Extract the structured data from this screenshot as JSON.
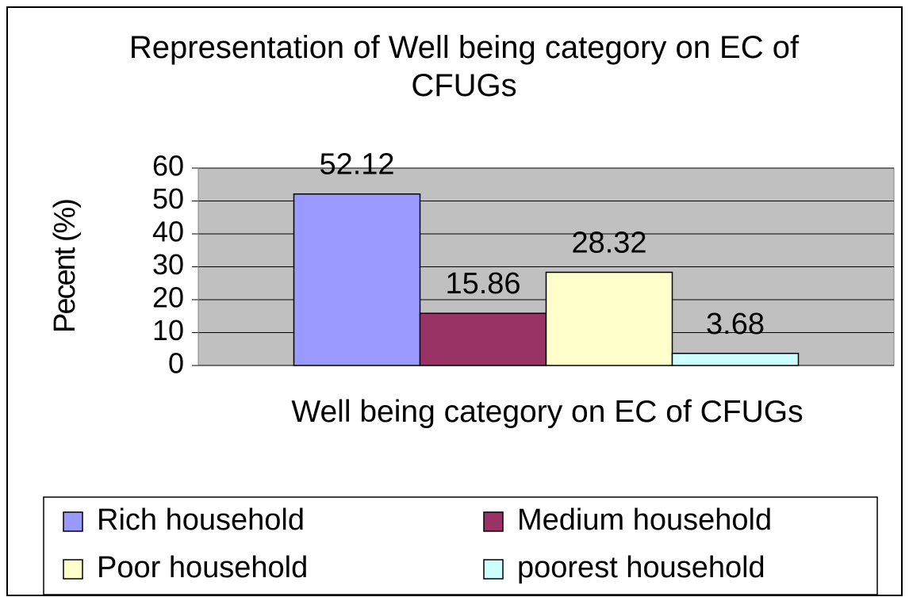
{
  "chart_data": {
    "type": "bar",
    "title": "Representation of Well being category on EC of CFUGs",
    "xlabel": "Well being category on EC of CFUGs",
    "ylabel": "Pecent (%)",
    "categories": [
      null
    ],
    "series": [
      {
        "name": "Rich household",
        "color": "#9999ff",
        "values": [
          52.12
        ]
      },
      {
        "name": "Medium household",
        "color": "#993366",
        "values": [
          15.86
        ]
      },
      {
        "name": "Poor household",
        "color": "#ffffcc",
        "values": [
          28.32
        ]
      },
      {
        "name": "poorest household",
        "color": "#ccffff",
        "values": [
          3.68
        ]
      }
    ],
    "ylim": [
      0,
      60
    ],
    "yticks": [
      0,
      10,
      20,
      30,
      40,
      50,
      60
    ],
    "grid": true,
    "legend": "bottom"
  }
}
